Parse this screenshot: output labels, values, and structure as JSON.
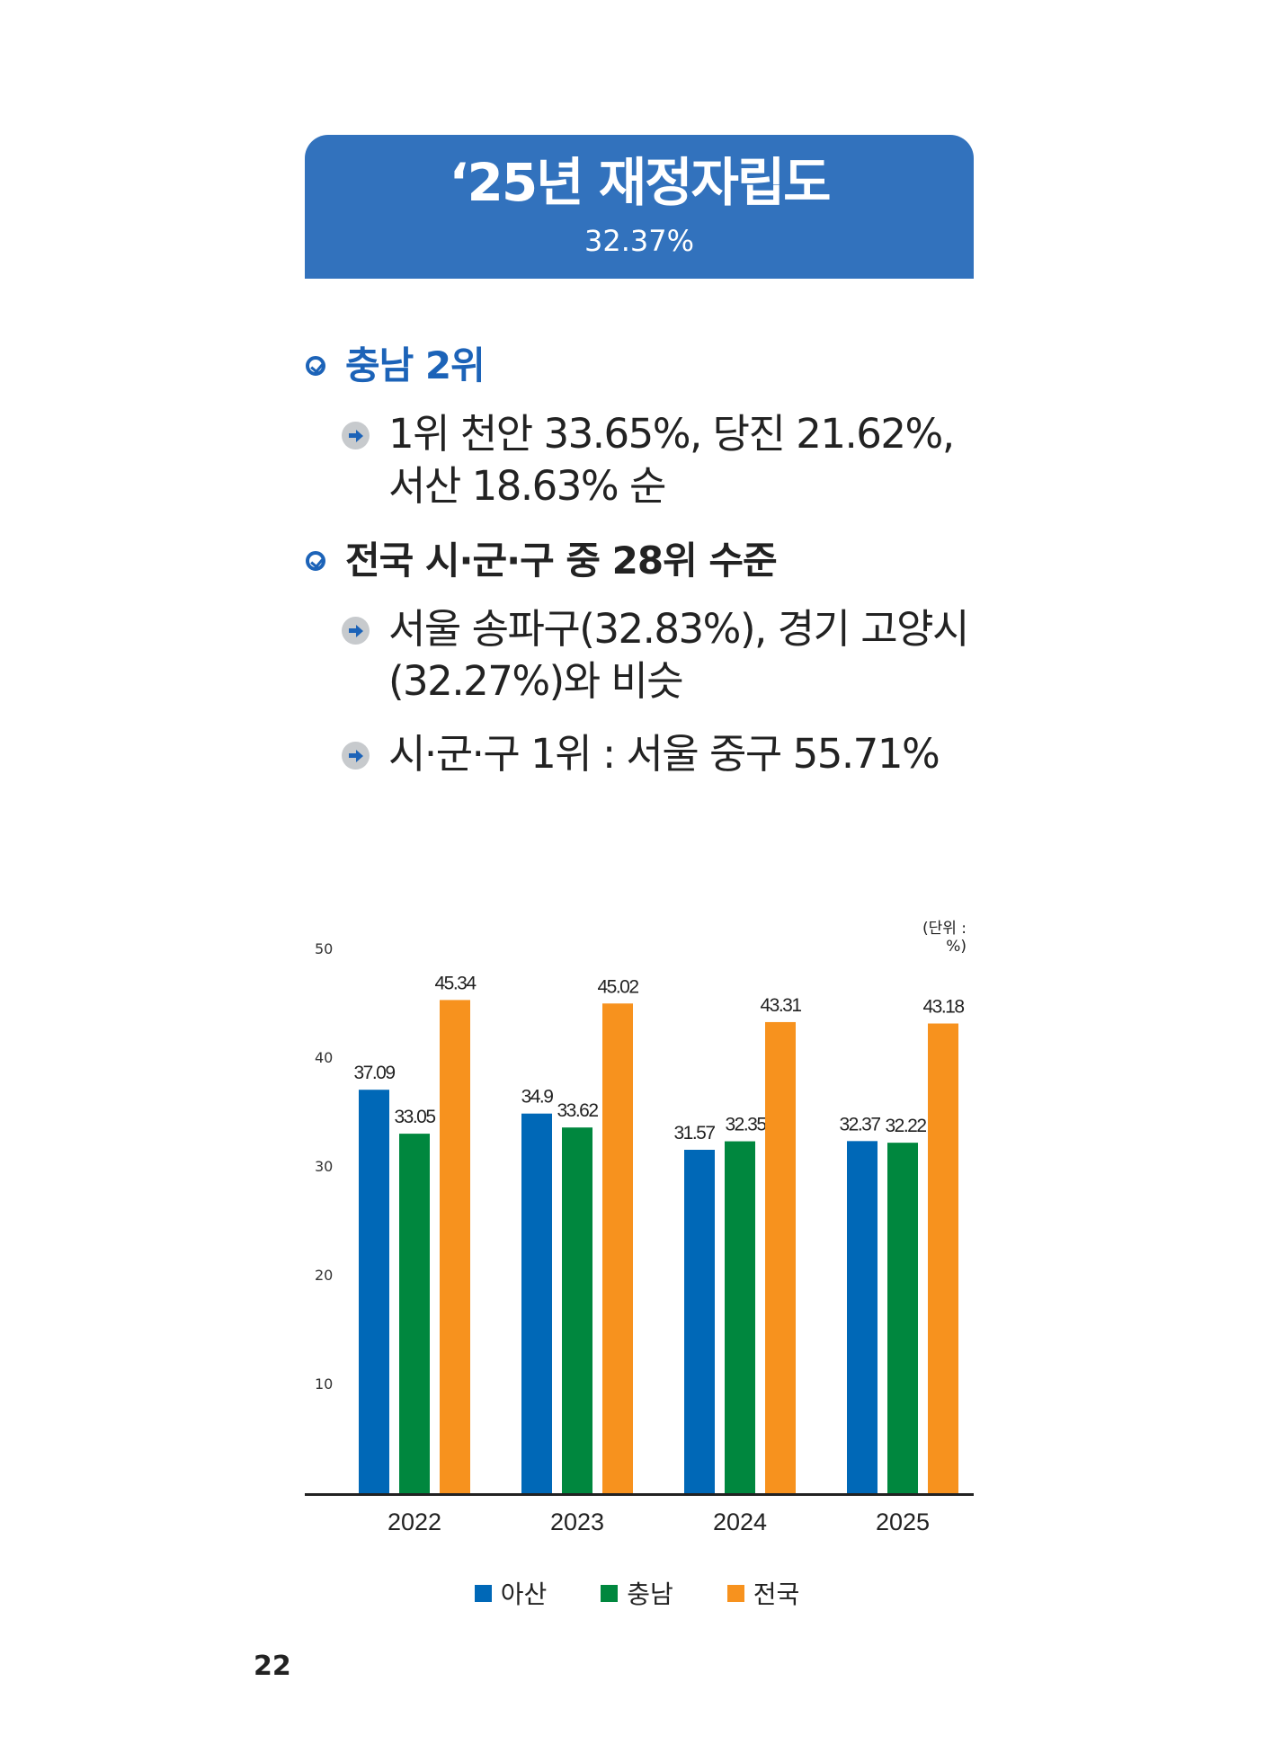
{
  "banner": {
    "title": "‘25년 재정자립도",
    "value": "32.37%"
  },
  "section1": {
    "heading": "충남 2위",
    "items": [
      {
        "lines": [
          "1위 천안 33.65%, 당진 21.62%,",
          "서산 18.63% 순"
        ]
      }
    ]
  },
  "section2": {
    "heading": "전국 시·군·구 중 28위 수준",
    "items": [
      {
        "lines": [
          "서울 송파구(32.83%), 경기 고양시",
          "(32.27%)와 비슷"
        ]
      },
      {
        "lines": [
          "시·군·구 1위 : 서울 중구 55.71%"
        ]
      }
    ]
  },
  "chart_data": {
    "type": "bar",
    "unit_label": "(단위 : %)",
    "categories": [
      "2022",
      "2023",
      "2024",
      "2025"
    ],
    "series": [
      {
        "name": "아산",
        "color": "#0068b7",
        "values": [
          37.09,
          34.9,
          31.57,
          32.37
        ],
        "labels": [
          "37.09",
          "34.9",
          "31.57",
          "32.37"
        ]
      },
      {
        "name": "충남",
        "color": "#00873e",
        "values": [
          33.05,
          33.62,
          32.35,
          32.22
        ],
        "labels": [
          "33.05",
          "33.62",
          "32.35",
          "32.22"
        ]
      },
      {
        "name": "전국",
        "color": "#f7921e",
        "values": [
          45.34,
          45.02,
          43.31,
          43.18
        ],
        "labels": [
          "45.34",
          "45.02",
          "43.31",
          "43.18"
        ]
      }
    ],
    "y_ticks": [
      "10",
      "20",
      "30",
      "40",
      "50"
    ],
    "ylim": [
      0,
      50
    ],
    "grid": false,
    "legend_position": "bottom-center"
  },
  "page": {
    "number": "22"
  }
}
